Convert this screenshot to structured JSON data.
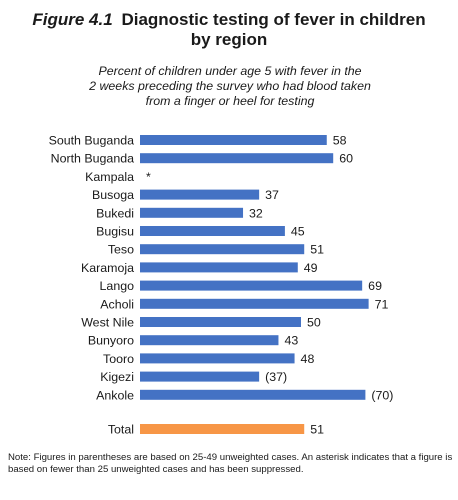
{
  "header": {
    "figure_label": "Figure 4.1",
    "title_line1": "Diagnostic testing of fever in children",
    "title_line2": "by region"
  },
  "chart_data": {
    "type": "bar",
    "orientation": "horizontal",
    "title": "Diagnostic testing of fever in children by region",
    "subtitle": "Percent of children under age 5 with fever in the 2 weeks preceding the survey who had blood taken from a finger or heel for testing",
    "subtitle_lines": [
      "Percent of children under age 5 with fever in the",
      "2 weeks preceding the survey who had blood taken",
      "from a finger or heel for testing"
    ],
    "xlim": [
      0,
      100
    ],
    "grid": false,
    "bar_color": "#4472C4",
    "total_color": "#F79646",
    "categories": [
      "South Buganda",
      "North Buganda",
      "Kampala",
      "Busoga",
      "Bukedi",
      "Bugisu",
      "Teso",
      "Karamoja",
      "Lango",
      "Acholi",
      "West Nile",
      "Bunyoro",
      "Tooro",
      "Kigezi",
      "Ankole"
    ],
    "values": [
      58,
      60,
      null,
      37,
      32,
      45,
      51,
      49,
      69,
      71,
      50,
      43,
      48,
      37,
      70
    ],
    "labels": [
      "58",
      "60",
      "*",
      "37",
      "32",
      "45",
      "51",
      "49",
      "69",
      "71",
      "50",
      "43",
      "48",
      "(37)",
      "(70)"
    ],
    "total": {
      "category": "Total",
      "value": 51,
      "label": "51"
    }
  },
  "note": "Note: Figures in parentheses are based on 25-49 unweighted cases. An asterisk indicates that a figure is based on fewer than 25 unweighted cases and has been suppressed."
}
